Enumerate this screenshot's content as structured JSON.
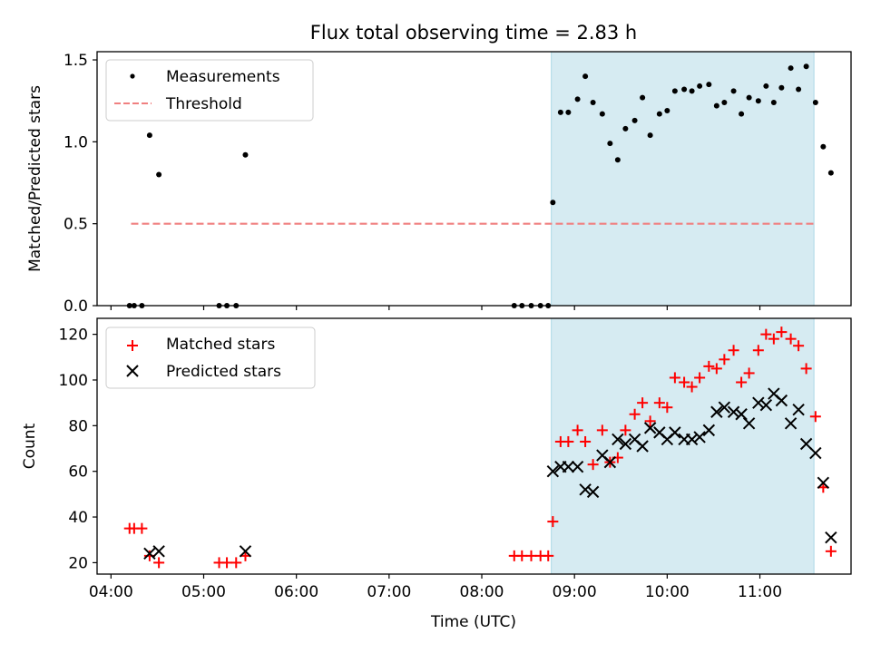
{
  "figure": {
    "title": "Flux total observing time = 2.83 h"
  },
  "colors": {
    "highlight": "#add8e6",
    "threshold": "#f08080",
    "matched": "#ff0000",
    "predicted": "#000000",
    "measure": "#000000"
  },
  "chart_data": [
    {
      "type": "scatter",
      "ylabel": "Matched/Predicted stars",
      "xlim": [
        "03:51",
        "11:59"
      ],
      "ylim": [
        0,
        1.55
      ],
      "grid": false,
      "legend_position": "top-left",
      "highlight_span": [
        "08:45",
        "11:35"
      ],
      "yticks": [
        "0.0",
        "0.5",
        "1.0",
        "1.5"
      ],
      "threshold": {
        "name": "Threshold",
        "value": 0.5,
        "x_range": [
          "04:13",
          "11:35"
        ]
      },
      "series": [
        {
          "name": "Measurements",
          "points": [
            [
              "04:12",
              0
            ],
            [
              "04:15",
              0
            ],
            [
              "04:20",
              0
            ],
            [
              "04:25",
              1.04
            ],
            [
              "04:31",
              0.8
            ],
            [
              "05:10",
              0
            ],
            [
              "05:15",
              0
            ],
            [
              "05:21",
              0
            ],
            [
              "05:27",
              0.92
            ],
            [
              "08:21",
              0
            ],
            [
              "08:26",
              0
            ],
            [
              "08:32",
              0
            ],
            [
              "08:38",
              0
            ],
            [
              "08:43",
              0
            ],
            [
              "08:46",
              0.63
            ],
            [
              "08:51",
              1.18
            ],
            [
              "08:56",
              1.18
            ],
            [
              "09:02",
              1.26
            ],
            [
              "09:07",
              1.4
            ],
            [
              "09:12",
              1.24
            ],
            [
              "09:18",
              1.17
            ],
            [
              "09:23",
              0.99
            ],
            [
              "09:28",
              0.89
            ],
            [
              "09:33",
              1.08
            ],
            [
              "09:39",
              1.13
            ],
            [
              "09:44",
              1.27
            ],
            [
              "09:49",
              1.04
            ],
            [
              "09:55",
              1.17
            ],
            [
              "10:00",
              1.19
            ],
            [
              "10:05",
              1.31
            ],
            [
              "10:11",
              1.32
            ],
            [
              "10:16",
              1.31
            ],
            [
              "10:21",
              1.34
            ],
            [
              "10:27",
              1.35
            ],
            [
              "10:32",
              1.22
            ],
            [
              "10:37",
              1.24
            ],
            [
              "10:43",
              1.31
            ],
            [
              "10:48",
              1.17
            ],
            [
              "10:53",
              1.27
            ],
            [
              "10:59",
              1.25
            ],
            [
              "11:04",
              1.34
            ],
            [
              "11:09",
              1.24
            ],
            [
              "11:14",
              1.33
            ],
            [
              "11:20",
              1.45
            ],
            [
              "11:25",
              1.32
            ],
            [
              "11:30",
              1.46
            ],
            [
              "11:36",
              1.24
            ],
            [
              "11:41",
              0.97
            ],
            [
              "11:46",
              0.81
            ]
          ]
        }
      ]
    },
    {
      "type": "scatter",
      "xlabel": "Time (UTC)",
      "ylabel": "Count",
      "xlim": [
        "03:51",
        "11:59"
      ],
      "ylim": [
        15,
        127
      ],
      "grid": false,
      "legend_position": "top-left",
      "highlight_span": [
        "08:45",
        "11:35"
      ],
      "xticks": [
        "04:00",
        "05:00",
        "06:00",
        "07:00",
        "08:00",
        "09:00",
        "10:00",
        "11:00"
      ],
      "yticks": [
        "20",
        "40",
        "60",
        "80",
        "100",
        "120"
      ],
      "series": [
        {
          "name": "Matched stars",
          "marker": "+",
          "points": [
            [
              "04:12",
              35
            ],
            [
              "04:15",
              35
            ],
            [
              "04:20",
              35
            ],
            [
              "04:25",
              23
            ],
            [
              "04:31",
              20
            ],
            [
              "05:10",
              20
            ],
            [
              "05:15",
              20
            ],
            [
              "05:21",
              20
            ],
            [
              "05:27",
              23
            ],
            [
              "08:21",
              23
            ],
            [
              "08:26",
              23
            ],
            [
              "08:32",
              23
            ],
            [
              "08:38",
              23
            ],
            [
              "08:43",
              23
            ],
            [
              "08:46",
              38
            ],
            [
              "08:51",
              73
            ],
            [
              "08:56",
              73
            ],
            [
              "09:02",
              78
            ],
            [
              "09:07",
              73
            ],
            [
              "09:12",
              63
            ],
            [
              "09:18",
              78
            ],
            [
              "09:23",
              64
            ],
            [
              "09:28",
              66
            ],
            [
              "09:33",
              78
            ],
            [
              "09:39",
              85
            ],
            [
              "09:44",
              90
            ],
            [
              "09:49",
              82
            ],
            [
              "09:55",
              90
            ],
            [
              "10:00",
              88
            ],
            [
              "10:05",
              101
            ],
            [
              "10:11",
              99
            ],
            [
              "10:16",
              97
            ],
            [
              "10:21",
              101
            ],
            [
              "10:27",
              106
            ],
            [
              "10:32",
              105
            ],
            [
              "10:37",
              109
            ],
            [
              "10:43",
              113
            ],
            [
              "10:48",
              99
            ],
            [
              "10:53",
              103
            ],
            [
              "10:59",
              113
            ],
            [
              "11:04",
              120
            ],
            [
              "11:09",
              118
            ],
            [
              "11:14",
              121
            ],
            [
              "11:20",
              118
            ],
            [
              "11:25",
              115
            ],
            [
              "11:30",
              105
            ],
            [
              "11:36",
              84
            ],
            [
              "11:41",
              53
            ],
            [
              "11:46",
              25
            ]
          ]
        },
        {
          "name": "Predicted stars",
          "marker": "x",
          "points": [
            [
              "04:25",
              24
            ],
            [
              "04:31",
              25
            ],
            [
              "05:27",
              25
            ],
            [
              "08:46",
              60
            ],
            [
              "08:51",
              62
            ],
            [
              "08:56",
              62
            ],
            [
              "09:02",
              62
            ],
            [
              "09:07",
              52
            ],
            [
              "09:12",
              51
            ],
            [
              "09:18",
              67
            ],
            [
              "09:23",
              64
            ],
            [
              "09:28",
              74
            ],
            [
              "09:33",
              72
            ],
            [
              "09:39",
              74
            ],
            [
              "09:44",
              71
            ],
            [
              "09:49",
              79
            ],
            [
              "09:55",
              77
            ],
            [
              "10:00",
              74
            ],
            [
              "10:05",
              77
            ],
            [
              "10:11",
              74
            ],
            [
              "10:16",
              74
            ],
            [
              "10:21",
              75
            ],
            [
              "10:27",
              78
            ],
            [
              "10:32",
              86
            ],
            [
              "10:37",
              88
            ],
            [
              "10:43",
              86
            ],
            [
              "10:48",
              85
            ],
            [
              "10:53",
              81
            ],
            [
              "10:59",
              90
            ],
            [
              "11:04",
              89
            ],
            [
              "11:09",
              94
            ],
            [
              "11:14",
              91
            ],
            [
              "11:20",
              81
            ],
            [
              "11:25",
              87
            ],
            [
              "11:30",
              72
            ],
            [
              "11:36",
              68
            ],
            [
              "11:41",
              55
            ],
            [
              "11:46",
              31
            ]
          ]
        }
      ]
    }
  ]
}
